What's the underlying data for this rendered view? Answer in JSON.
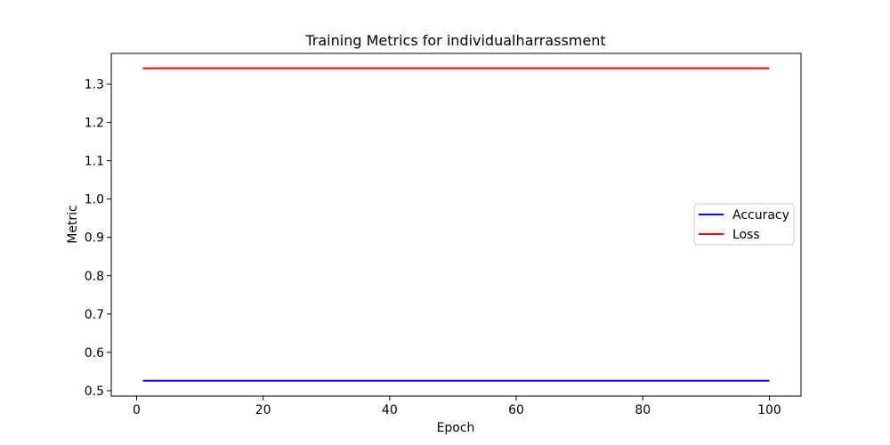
{
  "chart_data": {
    "type": "line",
    "title": "Training Metrics for individualharrassment",
    "xlabel": "Epoch",
    "ylabel": "Metric",
    "xlim": [
      -4,
      105
    ],
    "ylim": [
      0.486,
      1.38
    ],
    "x_ticks": [
      0,
      20,
      40,
      60,
      80,
      100
    ],
    "y_ticks": [
      0.5,
      0.6,
      0.7,
      0.8,
      0.9,
      1.0,
      1.1,
      1.2,
      1.3
    ],
    "x_tick_labels": [
      "0",
      "20",
      "40",
      "60",
      "80",
      "100"
    ],
    "y_tick_labels": [
      "0.5",
      "0.6",
      "0.7",
      "0.8",
      "0.9",
      "1.0",
      "1.1",
      "1.2",
      "1.3"
    ],
    "grid": false,
    "legend_position": "right",
    "series": [
      {
        "name": "Accuracy",
        "color": "#0000ff",
        "x": [
          1,
          100
        ],
        "y": [
          0.526,
          0.526
        ]
      },
      {
        "name": "Loss",
        "color": "#ff0000",
        "x": [
          1,
          100
        ],
        "y": [
          1.341,
          1.341
        ]
      }
    ]
  }
}
